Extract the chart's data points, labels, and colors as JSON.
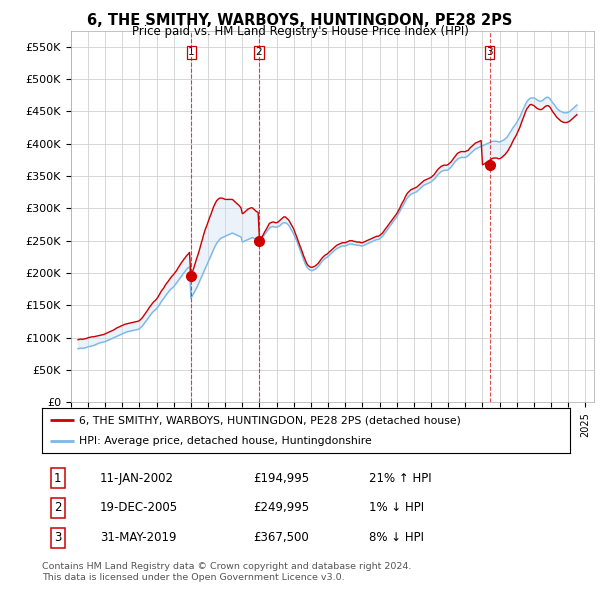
{
  "title": "6, THE SMITHY, WARBOYS, HUNTINGDON, PE28 2PS",
  "subtitle": "Price paid vs. HM Land Registry's House Price Index (HPI)",
  "ylim": [
    0,
    575000
  ],
  "yticks": [
    0,
    50000,
    100000,
    150000,
    200000,
    250000,
    300000,
    350000,
    400000,
    450000,
    500000,
    550000
  ],
  "ytick_labels": [
    "£0",
    "£50K",
    "£100K",
    "£150K",
    "£200K",
    "£250K",
    "£300K",
    "£350K",
    "£400K",
    "£450K",
    "£500K",
    "£550K"
  ],
  "hpi_color": "#7ab8e8",
  "price_color": "#cc0000",
  "vline_color": "#cc0000",
  "fill_color": "#c8dcf0",
  "background_color": "#ffffff",
  "grid_color": "#c8c8c8",
  "transactions": [
    {
      "label": "1",
      "date_num": 2002.03,
      "price": 194995
    },
    {
      "label": "2",
      "date_num": 2005.97,
      "price": 249995
    },
    {
      "label": "3",
      "date_num": 2019.41,
      "price": 367500
    }
  ],
  "table_rows": [
    {
      "num": "1",
      "date": "11-JAN-2002",
      "price": "£194,995",
      "change": "21% ↑ HPI"
    },
    {
      "num": "2",
      "date": "19-DEC-2005",
      "price": "£249,995",
      "change": "1% ↓ HPI"
    },
    {
      "num": "3",
      "date": "31-MAY-2019",
      "price": "£367,500",
      "change": "8% ↓ HPI"
    }
  ],
  "legend_line1": "6, THE SMITHY, WARBOYS, HUNTINGDON, PE28 2PS (detached house)",
  "legend_line2": "HPI: Average price, detached house, Huntingdonshire",
  "footer1": "Contains HM Land Registry data © Crown copyright and database right 2024.",
  "footer2": "This data is licensed under the Open Government Licence v3.0.",
  "hpi_data_x": [
    1995.42,
    1995.5,
    1995.58,
    1995.67,
    1995.75,
    1995.83,
    1995.92,
    1996.0,
    1996.08,
    1996.17,
    1996.25,
    1996.33,
    1996.42,
    1996.5,
    1996.58,
    1996.67,
    1996.75,
    1996.83,
    1996.92,
    1997.0,
    1997.08,
    1997.17,
    1997.25,
    1997.33,
    1997.42,
    1997.5,
    1997.58,
    1997.67,
    1997.75,
    1997.83,
    1997.92,
    1998.0,
    1998.08,
    1998.17,
    1998.25,
    1998.33,
    1998.42,
    1998.5,
    1998.58,
    1998.67,
    1998.75,
    1998.83,
    1998.92,
    1999.0,
    1999.08,
    1999.17,
    1999.25,
    1999.33,
    1999.42,
    1999.5,
    1999.58,
    1999.67,
    1999.75,
    1999.83,
    1999.92,
    2000.0,
    2000.08,
    2000.17,
    2000.25,
    2000.33,
    2000.42,
    2000.5,
    2000.58,
    2000.67,
    2000.75,
    2000.83,
    2000.92,
    2001.0,
    2001.08,
    2001.17,
    2001.25,
    2001.33,
    2001.42,
    2001.5,
    2001.58,
    2001.67,
    2001.75,
    2001.83,
    2001.92,
    2002.0,
    2002.08,
    2002.17,
    2002.25,
    2002.33,
    2002.42,
    2002.5,
    2002.58,
    2002.67,
    2002.75,
    2002.83,
    2002.92,
    2003.0,
    2003.08,
    2003.17,
    2003.25,
    2003.33,
    2003.42,
    2003.5,
    2003.58,
    2003.67,
    2003.75,
    2003.83,
    2003.92,
    2004.0,
    2004.08,
    2004.17,
    2004.25,
    2004.33,
    2004.42,
    2004.5,
    2004.58,
    2004.67,
    2004.75,
    2004.83,
    2004.92,
    2005.0,
    2005.08,
    2005.17,
    2005.25,
    2005.33,
    2005.42,
    2005.5,
    2005.58,
    2005.67,
    2005.75,
    2005.83,
    2005.92,
    2006.0,
    2006.08,
    2006.17,
    2006.25,
    2006.33,
    2006.42,
    2006.5,
    2006.58,
    2006.67,
    2006.75,
    2006.83,
    2006.92,
    2007.0,
    2007.08,
    2007.17,
    2007.25,
    2007.33,
    2007.42,
    2007.5,
    2007.58,
    2007.67,
    2007.75,
    2007.83,
    2007.92,
    2008.0,
    2008.08,
    2008.17,
    2008.25,
    2008.33,
    2008.42,
    2008.5,
    2008.58,
    2008.67,
    2008.75,
    2008.83,
    2008.92,
    2009.0,
    2009.08,
    2009.17,
    2009.25,
    2009.33,
    2009.42,
    2009.5,
    2009.58,
    2009.67,
    2009.75,
    2009.83,
    2009.92,
    2010.0,
    2010.08,
    2010.17,
    2010.25,
    2010.33,
    2010.42,
    2010.5,
    2010.58,
    2010.67,
    2010.75,
    2010.83,
    2010.92,
    2011.0,
    2011.08,
    2011.17,
    2011.25,
    2011.33,
    2011.42,
    2011.5,
    2011.58,
    2011.67,
    2011.75,
    2011.83,
    2011.92,
    2012.0,
    2012.08,
    2012.17,
    2012.25,
    2012.33,
    2012.42,
    2012.5,
    2012.58,
    2012.67,
    2012.75,
    2012.83,
    2012.92,
    2013.0,
    2013.08,
    2013.17,
    2013.25,
    2013.33,
    2013.42,
    2013.5,
    2013.58,
    2013.67,
    2013.75,
    2013.83,
    2013.92,
    2014.0,
    2014.08,
    2014.17,
    2014.25,
    2014.33,
    2014.42,
    2014.5,
    2014.58,
    2014.67,
    2014.75,
    2014.83,
    2014.92,
    2015.0,
    2015.08,
    2015.17,
    2015.25,
    2015.33,
    2015.42,
    2015.5,
    2015.58,
    2015.67,
    2015.75,
    2015.83,
    2015.92,
    2016.0,
    2016.08,
    2016.17,
    2016.25,
    2016.33,
    2016.42,
    2016.5,
    2016.58,
    2016.67,
    2016.75,
    2016.83,
    2016.92,
    2017.0,
    2017.08,
    2017.17,
    2017.25,
    2017.33,
    2017.42,
    2017.5,
    2017.58,
    2017.67,
    2017.75,
    2017.83,
    2017.92,
    2018.0,
    2018.08,
    2018.17,
    2018.25,
    2018.33,
    2018.42,
    2018.5,
    2018.58,
    2018.67,
    2018.75,
    2018.83,
    2018.92,
    2019.0,
    2019.08,
    2019.17,
    2019.25,
    2019.33,
    2019.42,
    2019.5,
    2019.58,
    2019.67,
    2019.75,
    2019.83,
    2019.92,
    2020.0,
    2020.08,
    2020.17,
    2020.25,
    2020.33,
    2020.42,
    2020.5,
    2020.58,
    2020.67,
    2020.75,
    2020.83,
    2020.92,
    2021.0,
    2021.08,
    2021.17,
    2021.25,
    2021.33,
    2021.42,
    2021.5,
    2021.58,
    2021.67,
    2021.75,
    2021.83,
    2021.92,
    2022.0,
    2022.08,
    2022.17,
    2022.25,
    2022.33,
    2022.42,
    2022.5,
    2022.58,
    2022.67,
    2022.75,
    2022.83,
    2022.92,
    2023.0,
    2023.08,
    2023.17,
    2023.25,
    2023.33,
    2023.42,
    2023.5,
    2023.58,
    2023.67,
    2023.75,
    2023.83,
    2023.92,
    2024.0,
    2024.08,
    2024.17,
    2024.25,
    2024.33,
    2024.42,
    2024.5
  ],
  "hpi_data_y": [
    83000,
    83500,
    84000,
    83500,
    84000,
    84500,
    85000,
    86000,
    86500,
    87000,
    87500,
    88000,
    89000,
    90000,
    91000,
    92000,
    92500,
    93000,
    93500,
    94000,
    95000,
    96000,
    97000,
    98000,
    99000,
    100000,
    101000,
    102000,
    103000,
    104000,
    105000,
    106000,
    107000,
    108000,
    109000,
    109500,
    110000,
    110500,
    111000,
    111500,
    112000,
    112500,
    113000,
    114000,
    116000,
    118000,
    121000,
    124000,
    127000,
    130000,
    133000,
    136000,
    139000,
    141000,
    143000,
    145000,
    148000,
    151000,
    155000,
    158000,
    161000,
    164000,
    167000,
    170000,
    173000,
    175000,
    177000,
    179000,
    182000,
    185000,
    188000,
    191000,
    194000,
    197000,
    200000,
    203000,
    206000,
    208000,
    210000,
    161000,
    165000,
    169000,
    173000,
    177000,
    182000,
    187000,
    192000,
    197000,
    202000,
    207000,
    212000,
    217000,
    222000,
    227000,
    232000,
    237000,
    242000,
    246000,
    249000,
    252000,
    254000,
    255000,
    256000,
    257000,
    258000,
    259000,
    260000,
    261000,
    262000,
    261000,
    260000,
    259000,
    258000,
    257000,
    256000,
    248000,
    249000,
    250000,
    251000,
    252000,
    253000,
    254000,
    255000,
    254000,
    253000,
    251000,
    250000,
    252000,
    254000,
    256000,
    258000,
    261000,
    264000,
    267000,
    270000,
    271000,
    272000,
    272000,
    271000,
    271000,
    272000,
    273000,
    275000,
    277000,
    278000,
    278000,
    277000,
    275000,
    272000,
    268000,
    264000,
    260000,
    255000,
    250000,
    244000,
    238000,
    232000,
    226000,
    220000,
    214000,
    210000,
    207000,
    205000,
    204000,
    204000,
    205000,
    206000,
    208000,
    210000,
    213000,
    216000,
    219000,
    221000,
    223000,
    224000,
    226000,
    228000,
    230000,
    232000,
    234000,
    236000,
    238000,
    239000,
    240000,
    241000,
    242000,
    242000,
    242000,
    243000,
    244000,
    245000,
    245000,
    245000,
    244000,
    244000,
    243000,
    243000,
    243000,
    242000,
    242000,
    243000,
    244000,
    245000,
    246000,
    247000,
    248000,
    249000,
    250000,
    251000,
    252000,
    252000,
    253000,
    255000,
    257000,
    260000,
    263000,
    266000,
    269000,
    272000,
    275000,
    278000,
    281000,
    284000,
    287000,
    291000,
    295000,
    299000,
    303000,
    307000,
    311000,
    315000,
    318000,
    320000,
    322000,
    323000,
    324000,
    325000,
    326000,
    328000,
    330000,
    332000,
    334000,
    336000,
    337000,
    338000,
    339000,
    340000,
    341000,
    343000,
    345000,
    347000,
    350000,
    353000,
    355000,
    357000,
    358000,
    359000,
    359000,
    359000,
    360000,
    362000,
    364000,
    367000,
    370000,
    373000,
    375000,
    377000,
    378000,
    379000,
    379000,
    379000,
    379000,
    380000,
    382000,
    384000,
    386000,
    388000,
    390000,
    392000,
    393000,
    394000,
    395000,
    396000,
    397000,
    398000,
    399000,
    400000,
    401000,
    402000,
    403000,
    404000,
    404000,
    404000,
    404000,
    403000,
    403000,
    404000,
    405000,
    406000,
    408000,
    410000,
    413000,
    417000,
    420000,
    424000,
    427000,
    430000,
    433000,
    437000,
    441000,
    446000,
    451000,
    456000,
    461000,
    465000,
    468000,
    470000,
    471000,
    471000,
    471000,
    470000,
    468000,
    467000,
    466000,
    466000,
    467000,
    469000,
    471000,
    472000,
    472000,
    470000,
    467000,
    464000,
    461000,
    458000,
    455000,
    453000,
    451000,
    450000,
    449000,
    448000,
    448000,
    448000,
    449000,
    450000,
    452000,
    454000,
    456000,
    458000,
    460000
  ],
  "prop_data_y": [
    97000,
    97500,
    98000,
    97500,
    98000,
    98500,
    99000,
    100000,
    100500,
    101000,
    101500,
    101500,
    102000,
    102500,
    103000,
    103500,
    104000,
    104500,
    105000,
    106000,
    107000,
    108000,
    109000,
    110000,
    111000,
    112000,
    113500,
    115000,
    116000,
    117000,
    118000,
    119000,
    120000,
    121000,
    121500,
    122000,
    122500,
    123000,
    123500,
    124000,
    124500,
    125000,
    125500,
    126500,
    128500,
    131000,
    134000,
    137000,
    140500,
    143500,
    147000,
    150000,
    153000,
    155500,
    157500,
    160000,
    163000,
    167000,
    171000,
    174000,
    177000,
    181000,
    184000,
    187000,
    190000,
    193000,
    196000,
    198000,
    201000,
    204000,
    208000,
    211000,
    215000,
    218000,
    221000,
    224000,
    227000,
    229000,
    232000,
    194995,
    201000,
    208000,
    215000,
    222000,
    229000,
    236000,
    244000,
    252000,
    260000,
    267000,
    273000,
    279000,
    285000,
    291000,
    297000,
    303000,
    308000,
    312000,
    314000,
    316000,
    316000,
    316000,
    315000,
    314000,
    314000,
    314000,
    314000,
    314000,
    314000,
    312000,
    310000,
    308000,
    306000,
    304000,
    301000,
    292000,
    293000,
    295000,
    297000,
    299000,
    300000,
    301000,
    301000,
    299000,
    297000,
    295000,
    294000,
    249995,
    253000,
    257000,
    261000,
    265000,
    269000,
    273000,
    277000,
    278000,
    279000,
    279000,
    278000,
    278000,
    279000,
    281000,
    283000,
    285000,
    287000,
    287000,
    285000,
    283000,
    280000,
    276000,
    272000,
    268000,
    262000,
    256000,
    250000,
    244000,
    238000,
    232000,
    226000,
    220000,
    215000,
    212000,
    210000,
    209000,
    209000,
    210000,
    211000,
    213000,
    215000,
    218000,
    221000,
    224000,
    226000,
    228000,
    229000,
    231000,
    233000,
    235000,
    237000,
    239000,
    241000,
    243000,
    244000,
    245000,
    246000,
    247000,
    247000,
    247000,
    248000,
    249000,
    250000,
    250000,
    250000,
    249000,
    249000,
    248000,
    248000,
    248000,
    247000,
    247000,
    248000,
    249000,
    250000,
    251000,
    252000,
    253000,
    254000,
    255000,
    256000,
    257000,
    257000,
    258000,
    260000,
    262000,
    265000,
    268000,
    271000,
    274000,
    277000,
    280000,
    283000,
    286000,
    289000,
    292000,
    296000,
    300000,
    305000,
    309000,
    313000,
    318000,
    322000,
    325000,
    327000,
    329000,
    330000,
    331000,
    332000,
    333000,
    335000,
    337000,
    339000,
    341000,
    343000,
    344000,
    345000,
    346000,
    347000,
    348000,
    350000,
    352000,
    355000,
    358000,
    361000,
    363000,
    365000,
    366000,
    367000,
    367000,
    367000,
    368000,
    370000,
    372000,
    375000,
    378000,
    381000,
    384000,
    386000,
    387000,
    388000,
    388000,
    388000,
    388000,
    389000,
    390000,
    393000,
    395000,
    397000,
    399000,
    401000,
    402000,
    403000,
    404000,
    405000,
    367500,
    368500,
    370000,
    371500,
    373000,
    374500,
    376000,
    377500,
    378000,
    378000,
    378000,
    377000,
    377000,
    378000,
    380000,
    382000,
    384000,
    387000,
    390000,
    394000,
    398000,
    403000,
    407000,
    411000,
    415000,
    420000,
    425000,
    431000,
    437000,
    443000,
    449000,
    454000,
    457000,
    460000,
    461000,
    460000,
    459000,
    457000,
    455000,
    454000,
    453000,
    453000,
    454000,
    456000,
    458000,
    459000,
    459000,
    457000,
    454000,
    450000,
    447000,
    444000,
    441000,
    439000,
    437000,
    435000,
    434000,
    433000,
    433000,
    433000,
    434000,
    435000,
    437000,
    439000,
    441000,
    443000,
    445000
  ]
}
